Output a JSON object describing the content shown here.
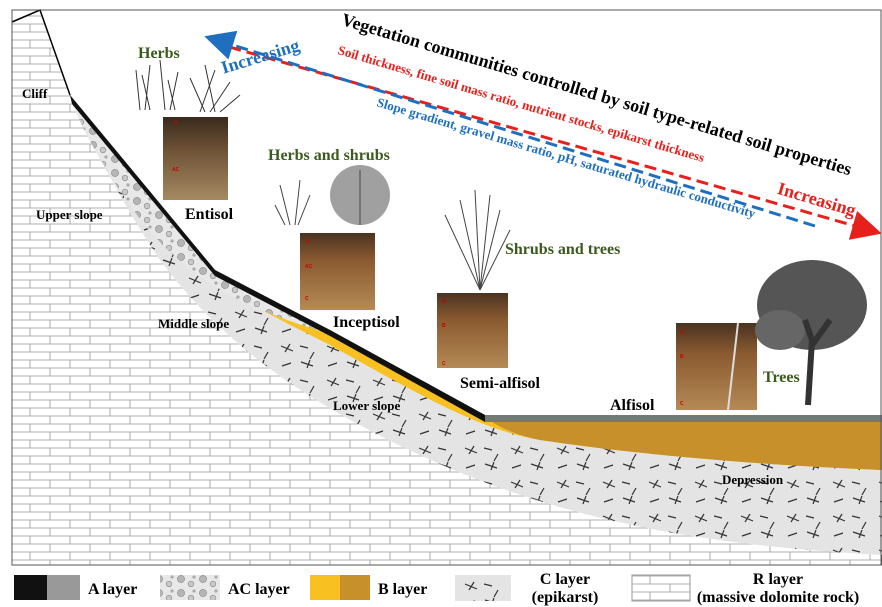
{
  "title": "Vegetation communities controlled by soil type-related soil properties",
  "gradients": [
    {
      "label": "Soil thickness, fine soil mass ratio, nutrient stocks, epikarst thickness",
      "direction": "Increasing"
    },
    {
      "label": "Slope gradient, gravel mass ratio, pH, saturated hydraulic conductivity",
      "direction": "Increasing"
    }
  ],
  "positions": [
    "Cliff",
    "Upper slope",
    "Middle slope",
    "Lower slope",
    "Depression"
  ],
  "soils": [
    {
      "name": "Entisol",
      "vegetation": "Herbs",
      "horizons": [
        "A",
        "AC"
      ]
    },
    {
      "name": "Inceptisol",
      "vegetation": "Herbs and shrubs",
      "horizons": [
        "A",
        "AC",
        "C"
      ]
    },
    {
      "name": "Semi-alfisol",
      "vegetation": "Shrubs and trees",
      "horizons": [
        "A",
        "B",
        "C"
      ]
    },
    {
      "name": "Alfisol",
      "vegetation": "Trees",
      "horizons": [
        "A",
        "B",
        "C"
      ]
    }
  ],
  "legend": [
    {
      "lines": [
        "A layer"
      ]
    },
    {
      "lines": [
        "AC layer"
      ]
    },
    {
      "lines": [
        "B layer"
      ]
    },
    {
      "lines": [
        "C layer",
        "(epikarst)"
      ]
    },
    {
      "lines": [
        "R layer",
        "(massive dolomite rock)"
      ]
    }
  ]
}
